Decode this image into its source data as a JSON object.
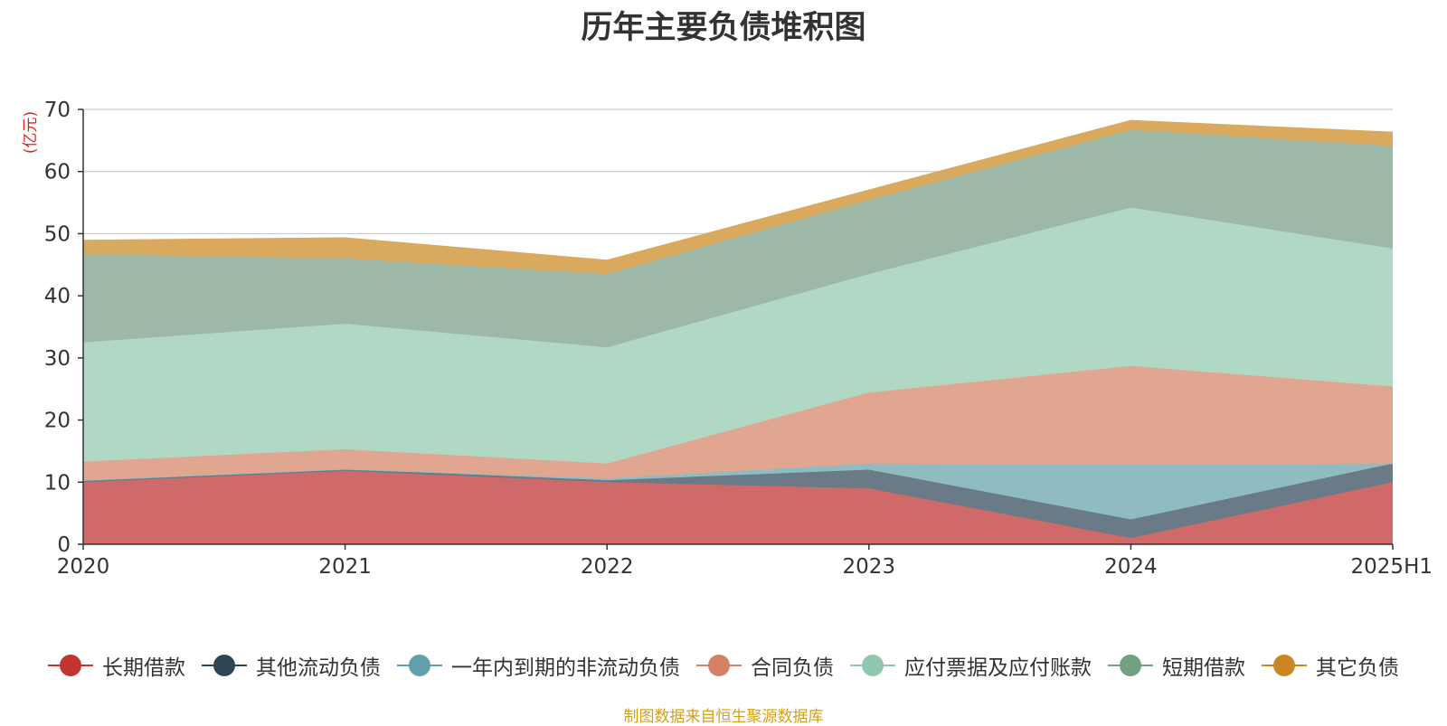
{
  "chart_data": {
    "type": "area",
    "stacked": true,
    "title": "历年主要负债堆积图",
    "ylabel": "(亿元)",
    "categories": [
      "2020",
      "2021",
      "2022",
      "2023",
      "2024",
      "2025H1"
    ],
    "ylim": [
      0,
      70
    ],
    "yticks": [
      0,
      10,
      20,
      30,
      40,
      50,
      60,
      70
    ],
    "grid": true,
    "legend_position": "bottom",
    "series": [
      {
        "name": "长期借款",
        "color": "#d06a6a",
        "legend_color": "#c23531",
        "values": [
          10.0,
          11.8,
          10.0,
          9.0,
          1.0,
          10.0
        ]
      },
      {
        "name": "其他流动负债",
        "color": "#6b7a87",
        "legend_color": "#2f4554",
        "values": [
          0.3,
          0.3,
          0.3,
          3.0,
          3.0,
          3.0
        ]
      },
      {
        "name": "一年内到期的非流动负债",
        "color": "#8fbcc2",
        "legend_color": "#61a0a8",
        "values": [
          0.0,
          0.0,
          0.3,
          1.0,
          8.8,
          0.0
        ]
      },
      {
        "name": "合同负债",
        "color": "#e0a690",
        "legend_color": "#d48265",
        "values": [
          3.0,
          3.2,
          2.4,
          11.4,
          15.9,
          12.4
        ]
      },
      {
        "name": "应付票据及应付账款",
        "color": "#b1d7c5",
        "legend_color": "#91c7ae",
        "values": [
          19.2,
          20.2,
          18.7,
          19.1,
          25.5,
          22.2
        ]
      },
      {
        "name": "短期借款",
        "color": "#9db8a6",
        "legend_color": "#749f83",
        "values": [
          14.2,
          10.5,
          11.8,
          11.9,
          12.5,
          16.5
        ]
      },
      {
        "name": "其它负债",
        "color": "#d9a95e",
        "legend_color": "#ca8622",
        "values": [
          2.2,
          3.3,
          2.2,
          1.6,
          1.5,
          2.2
        ]
      }
    ]
  },
  "footer": {
    "source": "制图数据来自恒生聚源数据库"
  }
}
